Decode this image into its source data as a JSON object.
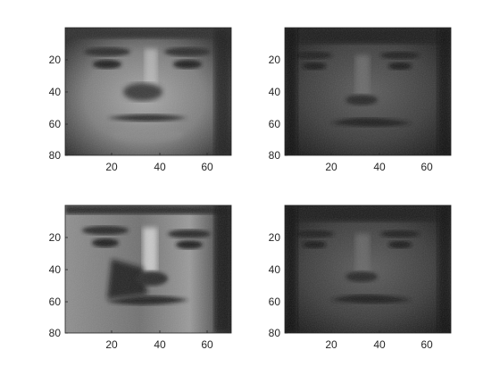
{
  "figure": {
    "x_ticks": [
      "20",
      "40",
      "60"
    ],
    "y_ticks": [
      "20",
      "40",
      "60",
      "80"
    ],
    "subplots": [
      {
        "name": "face-image-top-left",
        "subject": "face-a",
        "lighting": "side-lit, high contrast"
      },
      {
        "name": "face-image-top-right",
        "subject": "face-b",
        "lighting": "dim, even"
      },
      {
        "name": "face-image-bottom-left",
        "subject": "face-a",
        "lighting": "strong side light, deep shadows"
      },
      {
        "name": "face-image-bottom-right",
        "subject": "face-b",
        "lighting": "dim, even"
      }
    ]
  }
}
